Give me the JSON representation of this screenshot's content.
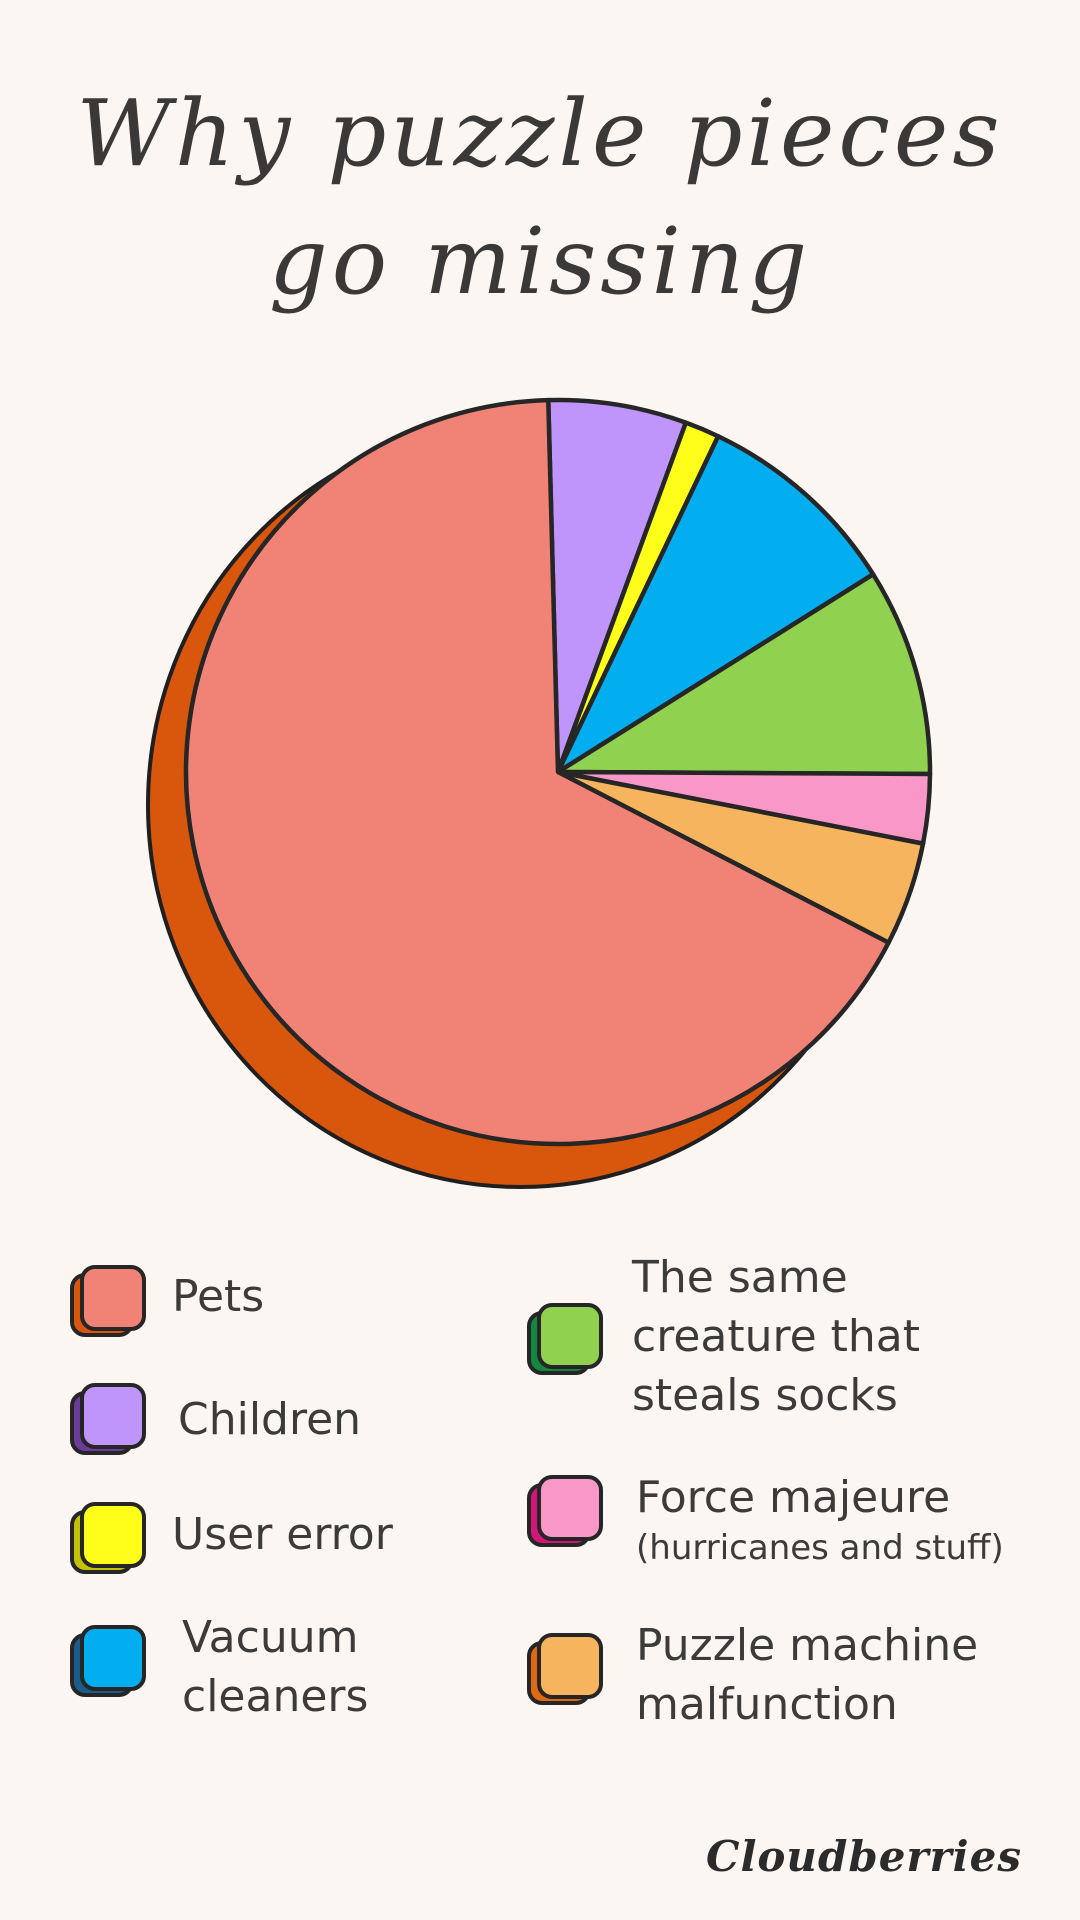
{
  "chart_data": {
    "type": "pie",
    "title_lines": [
      "Why puzzle pieces",
      "go missing"
    ],
    "slices": [
      {
        "label": "Children",
        "value": 6,
        "color": "#bf95fb",
        "shadow": "#6b3c99"
      },
      {
        "label": "User error",
        "value": 1.5,
        "color": "#fefe1a",
        "shadow": "#c6c100"
      },
      {
        "label": "Vacuum cleaners",
        "value": 9,
        "color": "#02aeef",
        "shadow": "#1c5c8a"
      },
      {
        "label": "The same creature that steals socks",
        "value": 9,
        "color": "#91d150",
        "shadow": "#138740"
      },
      {
        "label": "Force majeure",
        "value": 3,
        "color": "#f998c8",
        "shadow": "#d3177a"
      },
      {
        "label": "Puzzle machine malfunction",
        "value": 4.5,
        "color": "#f6b45f",
        "shadow": "#e06a10"
      },
      {
        "label": "Pets",
        "value": 67,
        "color": "#f08375",
        "shadow": "#d9560d"
      }
    ],
    "legend": [
      {
        "lines": [
          "Pets"
        ],
        "note": "",
        "color": "#f08375",
        "shadow": "#d9560d"
      },
      {
        "lines": [
          "Children"
        ],
        "note": "",
        "color": "#bf95fb",
        "shadow": "#6b3c99"
      },
      {
        "lines": [
          "User error"
        ],
        "note": "",
        "color": "#fefe1a",
        "shadow": "#c6c100"
      },
      {
        "lines": [
          "Vacuum",
          "cleaners"
        ],
        "note": "",
        "color": "#02aeef",
        "shadow": "#1c5c8a"
      },
      {
        "lines": [
          "The same",
          "creature that",
          "steals socks"
        ],
        "note": "",
        "color": "#91d150",
        "shadow": "#138740"
      },
      {
        "lines": [
          "Force majeure"
        ],
        "note": "(hurricanes and stuff)",
        "color": "#f998c8",
        "shadow": "#d3177a"
      },
      {
        "lines": [
          "Puzzle machine",
          "malfunction"
        ],
        "note": "",
        "color": "#f6b45f",
        "shadow": "#e06a10"
      }
    ],
    "legend_placement": "bottom"
  },
  "brand": "Cloudberries"
}
